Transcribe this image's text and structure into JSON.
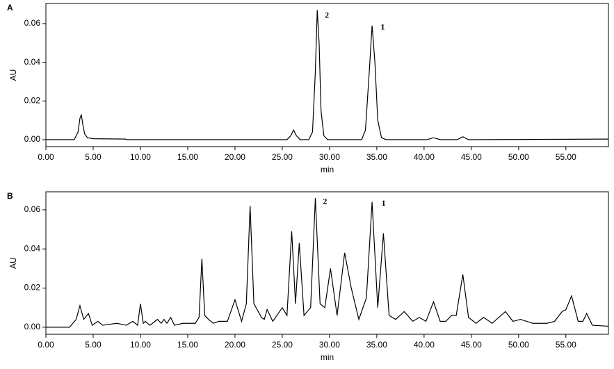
{
  "chart_data": [
    {
      "type": "line",
      "title": "A",
      "xlabel": "min",
      "ylabel": "AU",
      "x": [
        0,
        3.0,
        3.4,
        3.6,
        3.75,
        3.9,
        4.1,
        4.4,
        5,
        8.4,
        8.6,
        25.5,
        25.9,
        26.2,
        26.5,
        26.9,
        27.8,
        28.2,
        28.5,
        28.7,
        28.9,
        29.1,
        29.4,
        29.8,
        30.5,
        33.4,
        33.8,
        34.2,
        34.5,
        34.8,
        35.1,
        35.5,
        36,
        40.3,
        41,
        41.7,
        43.5,
        44.1,
        44.7,
        59.5
      ],
      "series": [
        {
          "color": "#000000",
          "values": [
            0,
            0,
            0.004,
            0.011,
            0.013,
            0.008,
            0.003,
            0.001,
            0.0005,
            0.0003,
            0,
            0,
            0.002,
            0.005,
            0.002,
            0,
            0,
            0.004,
            0.035,
            0.067,
            0.05,
            0.015,
            0.002,
            0,
            0,
            0,
            0.005,
            0.035,
            0.059,
            0.04,
            0.01,
            0.001,
            0,
            0,
            0.001,
            0,
            0,
            0.0015,
            0,
            0.0003
          ]
        }
      ],
      "xlim": [
        0,
        59.5
      ],
      "ylim": [
        -0.0036,
        0.0704
      ],
      "xticks": [
        {
          "value": 0,
          "label": "0.00"
        },
        {
          "value": 5,
          "label": "5.00"
        },
        {
          "value": 10,
          "label": "10.00"
        },
        {
          "value": 15,
          "label": "15.00"
        },
        {
          "value": 20,
          "label": "20.00"
        },
        {
          "value": 25,
          "label": "25.00"
        },
        {
          "value": 30,
          "label": "30.00"
        },
        {
          "value": 35,
          "label": "35.00"
        },
        {
          "value": 40,
          "label": "40.00"
        },
        {
          "value": 45,
          "label": "45.00"
        },
        {
          "value": 50,
          "label": "50.00"
        },
        {
          "value": 55,
          "label": "55.00"
        }
      ],
      "yticks": [
        {
          "value": 0,
          "label": "0.00"
        },
        {
          "value": 0.02,
          "label": "0.02"
        },
        {
          "value": 0.04,
          "label": "0.04"
        },
        {
          "value": 0.06,
          "label": "0.06"
        }
      ],
      "annotations": [
        {
          "text": "2",
          "x": 29.5,
          "y": 0.064
        },
        {
          "text": "1",
          "x": 35.4,
          "y": 0.058
        }
      ]
    },
    {
      "type": "line",
      "title": "B",
      "xlabel": "min",
      "ylabel": "AU",
      "x": [
        0,
        2.5,
        3.2,
        3.6,
        4.0,
        4.5,
        4.9,
        5.5,
        6,
        7.5,
        8.5,
        9.2,
        9.7,
        10.0,
        10.3,
        10.5,
        11,
        11.8,
        12.2,
        12.5,
        12.8,
        13.2,
        13.6,
        14.5,
        15.8,
        16.2,
        16.5,
        16.8,
        17.2,
        17.7,
        18.3,
        19.2,
        20.0,
        20.7,
        21.2,
        21.6,
        22.0,
        22.8,
        23.1,
        23.4,
        24.0,
        25.0,
        25.5,
        26.0,
        26.4,
        26.8,
        27.3,
        28.0,
        28.5,
        29.0,
        29.5,
        30.1,
        30.8,
        31.6,
        32.3,
        33.1,
        33.9,
        34.5,
        35.1,
        35.7,
        36.3,
        37.0,
        37.9,
        38.8,
        39.5,
        40.2,
        41.0,
        41.7,
        42.3,
        42.9,
        43.4,
        44.1,
        44.7,
        45.5,
        46.3,
        47.2,
        48.6,
        49.4,
        50.2,
        51.5,
        53,
        53.8,
        54.6,
        55.0,
        55.6,
        56.3,
        56.8,
        57.2,
        57.8,
        59.5
      ],
      "series": [
        {
          "color": "#000000",
          "values": [
            0,
            0,
            0.004,
            0.011,
            0.004,
            0.007,
            0.001,
            0.003,
            0.001,
            0.002,
            0.001,
            0.003,
            0.001,
            0.012,
            0.002,
            0.003,
            0.001,
            0.004,
            0.002,
            0.004,
            0.002,
            0.005,
            0.001,
            0.002,
            0.002,
            0.005,
            0.035,
            0.006,
            0.004,
            0.002,
            0.003,
            0.003,
            0.014,
            0.003,
            0.012,
            0.062,
            0.012,
            0.005,
            0.004,
            0.009,
            0.003,
            0.01,
            0.006,
            0.049,
            0.012,
            0.043,
            0.006,
            0.01,
            0.066,
            0.012,
            0.01,
            0.03,
            0.006,
            0.038,
            0.02,
            0.004,
            0.015,
            0.064,
            0.01,
            0.048,
            0.006,
            0.004,
            0.008,
            0.003,
            0.005,
            0.003,
            0.013,
            0.003,
            0.003,
            0.006,
            0.006,
            0.027,
            0.005,
            0.002,
            0.005,
            0.002,
            0.008,
            0.003,
            0.004,
            0.002,
            0.002,
            0.003,
            0.008,
            0.009,
            0.016,
            0.003,
            0.003,
            0.007,
            0.001,
            0.0005
          ]
        }
      ],
      "xlim": [
        0,
        59.5
      ],
      "ylim": [
        -0.0036,
        0.0692
      ],
      "xticks": [
        {
          "value": 0,
          "label": "0.00"
        },
        {
          "value": 5,
          "label": "5.00"
        },
        {
          "value": 10,
          "label": "10.00"
        },
        {
          "value": 15,
          "label": "15.00"
        },
        {
          "value": 20,
          "label": "20.00"
        },
        {
          "value": 25,
          "label": "25.00"
        },
        {
          "value": 30,
          "label": "30.00"
        },
        {
          "value": 35,
          "label": "35.00"
        },
        {
          "value": 40,
          "label": "40.00"
        },
        {
          "value": 45,
          "label": "45.00"
        },
        {
          "value": 50,
          "label": "50.00"
        },
        {
          "value": 55,
          "label": "55.00"
        }
      ],
      "yticks": [
        {
          "value": 0,
          "label": "0.00"
        },
        {
          "value": 0.02,
          "label": "0.02"
        },
        {
          "value": 0.04,
          "label": "0.04"
        },
        {
          "value": 0.06,
          "label": "0.06"
        }
      ],
      "annotations": [
        {
          "text": "2",
          "x": 29.3,
          "y": 0.064
        },
        {
          "text": "1",
          "x": 35.5,
          "y": 0.063
        }
      ]
    }
  ]
}
